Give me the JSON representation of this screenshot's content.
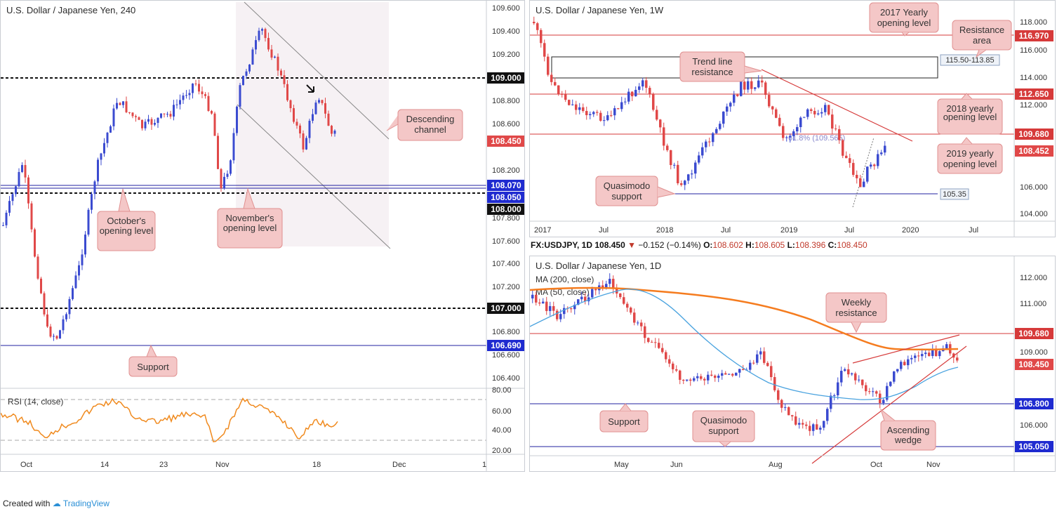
{
  "left": {
    "title": "U.S. Dollar / Japanese Yen, 240",
    "y_ticks": [
      "109.600",
      "109.400",
      "109.200",
      "109.000",
      "108.800",
      "108.600",
      "108.450",
      "108.200",
      "108.070",
      "108.050",
      "108.000",
      "107.800",
      "107.600",
      "107.400",
      "107.200",
      "107.000",
      "106.800",
      "106.690",
      "106.600",
      "106.400"
    ],
    "x_ticks": [
      "Oct",
      "14",
      "23",
      "Nov",
      "18",
      "Dec",
      "1"
    ],
    "rsi_label": "RSI (14, close)",
    "rsi_ticks": [
      "80.00",
      "60.00",
      "40.00",
      "20.00"
    ],
    "badges": {
      "price": "108.450",
      "l108070": "108.070",
      "l108050": "108.050",
      "l108000": "108.000",
      "l109000": "109.000",
      "l107000": "107.000",
      "l106690": "106.690"
    },
    "callouts": {
      "descending": "Descending channel",
      "october": "October's opening level",
      "november": "November's opening level",
      "support": "Support"
    }
  },
  "weekly": {
    "title": "U.S. Dollar / Japanese Yen, 1W",
    "y_ticks": [
      "118.000",
      "116.000",
      "114.000",
      "112.000",
      "110.000",
      "108.000",
      "106.000",
      "104.000"
    ],
    "x_ticks": [
      "2017",
      "Jul",
      "2018",
      "Jul",
      "2019",
      "Jul",
      "2020",
      "Jul"
    ],
    "badges": {
      "l116970": "116.970",
      "l112650": "112.650",
      "l109680": "109.680",
      "price": "108.452"
    },
    "zone_label": "115.50-113.85",
    "support_label": "105.35",
    "fib_label": "61.8% (109.565)",
    "callouts": {
      "y2017": "2017 Yearly opening level",
      "resistance_area": "Resistance area",
      "trend": "Trend line resistance",
      "y2018": "2018 yearly opening level",
      "y2019": "2019 yearly opening level",
      "quasimodo": "Quasimodo support"
    }
  },
  "daily": {
    "ticker": {
      "sym": "FX:USDJPY, 1D",
      "last": "108.450",
      "chg": "−0.152 (−0.14%)",
      "o_l": "O:",
      "o": "108.602",
      "h_l": "H:",
      "h": "108.605",
      "l_l": "L:",
      "l": "108.396",
      "c_l": "C:",
      "c": "108.450"
    },
    "title": "U.S. Dollar / Japanese Yen, 1D",
    "ma200": "MA (200, close)",
    "ma50": "MA (50, close)",
    "y_ticks": [
      "112.000",
      "111.000",
      "110.000",
      "109.000",
      "108.000",
      "107.000",
      "106.000",
      "105.000"
    ],
    "x_ticks": [
      "May",
      "Jun",
      "Aug",
      "Oct",
      "Nov"
    ],
    "badges": {
      "l109680": "109.680",
      "price": "108.450",
      "l106800": "106.800",
      "l105050": "105.050"
    },
    "callouts": {
      "weekly": "Weekly resistance",
      "support": "Support",
      "quasimodo": "Quasimodo support",
      "wedge": "Ascending wedge"
    }
  },
  "colors": {
    "up": "#3b4bd0",
    "down": "#e04848",
    "rsi": "#f08a1e",
    "ma200": "#f57c1f",
    "ma50": "#4aa3df",
    "callout_bg": "#f4c7c7",
    "callout_border": "#e09090",
    "blue_line": "#2020a0",
    "red_line": "#d63a3a"
  },
  "footer": {
    "created": "Created with",
    "brand": "TradingView"
  }
}
